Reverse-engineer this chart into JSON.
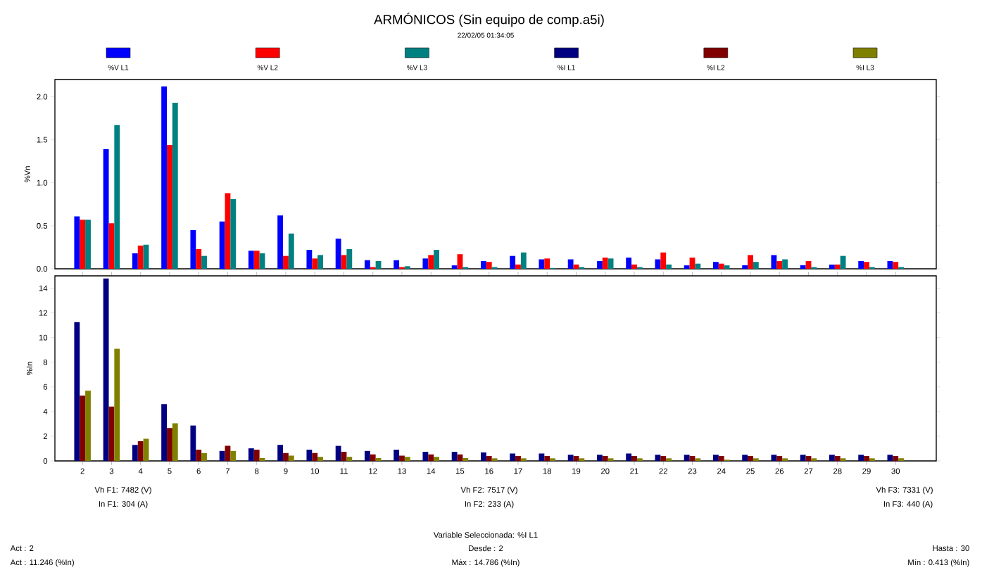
{
  "chart_data": [
    {
      "type": "bar",
      "title": "ARMÓNICOS (Sin equipo de comp.a5i)",
      "subtitle": "22/02/05 01:34:05",
      "ylabel": "%Vn",
      "categories": [
        "2",
        "3",
        "4",
        "5",
        "6",
        "7",
        "8",
        "9",
        "10",
        "11",
        "12",
        "13",
        "14",
        "15",
        "16",
        "17",
        "18",
        "19",
        "20",
        "21",
        "22",
        "23",
        "24",
        "25",
        "26",
        "27",
        "28",
        "29",
        "30"
      ],
      "series": [
        {
          "name": "%V L1",
          "color": "#0000ff",
          "values": [
            0.61,
            1.39,
            0.18,
            2.12,
            0.45,
            0.55,
            0.21,
            0.62,
            0.22,
            0.35,
            0.1,
            0.1,
            0.12,
            0.04,
            0.09,
            0.15,
            0.11,
            0.11,
            0.09,
            0.13,
            0.11,
            0.04,
            0.08,
            0.04,
            0.16,
            0.04,
            0.05,
            0.09,
            0.09
          ]
        },
        {
          "name": "%V L2",
          "color": "#ff0000",
          "values": [
            0.57,
            0.53,
            0.27,
            1.44,
            0.23,
            0.88,
            0.21,
            0.15,
            0.12,
            0.16,
            0.02,
            0.02,
            0.16,
            0.17,
            0.08,
            0.05,
            0.12,
            0.05,
            0.13,
            0.05,
            0.19,
            0.13,
            0.06,
            0.16,
            0.09,
            0.09,
            0.05,
            0.08,
            0.08
          ]
        },
        {
          "name": "%V L3",
          "color": "#008080",
          "values": [
            0.57,
            1.67,
            0.28,
            1.93,
            0.15,
            0.81,
            0.18,
            0.41,
            0.16,
            0.23,
            0.09,
            0.03,
            0.22,
            0.02,
            0.02,
            0.19,
            0.01,
            0.02,
            0.12,
            0.02,
            0.05,
            0.06,
            0.04,
            0.08,
            0.11,
            0.02,
            0.15,
            0.02,
            0.02
          ]
        }
      ],
      "ylim": [
        0,
        2.2
      ],
      "yticks": [
        {
          "value": 0,
          "label": "0.0"
        },
        {
          "value": 0.5,
          "label": "0.5"
        },
        {
          "value": 1,
          "label": "1.0"
        },
        {
          "value": 1.5,
          "label": "1.5"
        },
        {
          "value": 2,
          "label": "2.0"
        }
      ],
      "tick_labels": "y",
      "legend": "top"
    },
    {
      "type": "bar",
      "ylabel": "%In",
      "categories": [
        "2",
        "3",
        "4",
        "5",
        "6",
        "7",
        "8",
        "9",
        "10",
        "11",
        "12",
        "13",
        "14",
        "15",
        "16",
        "17",
        "18",
        "19",
        "20",
        "21",
        "22",
        "23",
        "24",
        "25",
        "26",
        "27",
        "28",
        "29",
        "30"
      ],
      "series": [
        {
          "name": "%I L1",
          "color": "#000080",
          "values": [
            11.246,
            14.786,
            1.3,
            4.6,
            2.87,
            0.81,
            1.02,
            1.3,
            0.91,
            1.22,
            0.81,
            0.91,
            0.74,
            0.74,
            0.69,
            0.6,
            0.6,
            0.5,
            0.5,
            0.6,
            0.5,
            0.5,
            0.5,
            0.5,
            0.5,
            0.5,
            0.5,
            0.5,
            0.5
          ]
        },
        {
          "name": "%I L2",
          "color": "#800000",
          "values": [
            5.29,
            4.4,
            1.6,
            2.67,
            0.91,
            1.22,
            0.91,
            0.64,
            0.64,
            0.74,
            0.53,
            0.43,
            0.53,
            0.53,
            0.4,
            0.4,
            0.4,
            0.4,
            0.4,
            0.4,
            0.4,
            0.4,
            0.4,
            0.4,
            0.4,
            0.4,
            0.4,
            0.4,
            0.4
          ]
        },
        {
          "name": "%I L3",
          "color": "#808000",
          "values": [
            5.69,
            9.1,
            1.8,
            3.05,
            0.64,
            0.81,
            0.23,
            0.43,
            0.33,
            0.33,
            0.23,
            0.33,
            0.33,
            0.23,
            0.21,
            0.21,
            0.21,
            0.21,
            0.21,
            0.21,
            0.21,
            0.21,
            0.1,
            0.21,
            0.21,
            0.21,
            0.21,
            0.21,
            0.21
          ]
        }
      ],
      "ylim": [
        0,
        15
      ],
      "yticks": [
        0,
        2,
        4,
        6,
        8,
        10,
        12,
        14
      ],
      "legend": "top",
      "annotations": [
        "Vh F1: 7482 (V)",
        "In F1: 304 (A)",
        "Vh F2: 7517 (V)",
        "In F2: 233 (A)",
        "Vh F3: 7331 (V)",
        "In F3: 440 (A)",
        "Variable Seleccionada: %I L1",
        "Act : 2",
        "Act : 11.246 (%In)",
        "Desde : 2",
        "Máx : 14.786 (%In)",
        "Hasta : 30",
        "Mín : 0.413 (%In)"
      ]
    }
  ]
}
